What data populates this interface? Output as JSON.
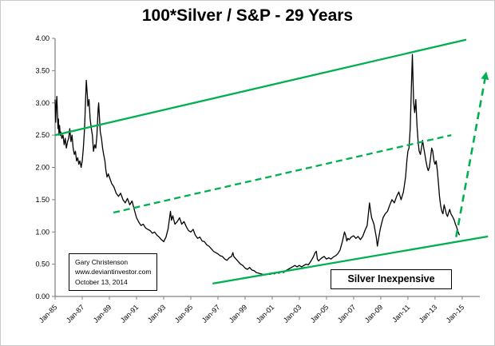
{
  "title": "100*Silver / S&P - 29 Years",
  "colors": {
    "series": "#000000",
    "trend_green": "#00B050",
    "axis": "#808080",
    "text": "#000000"
  },
  "chart_data": {
    "type": "line",
    "title": "100*Silver / S&P - 29 Years",
    "xlabel": "",
    "ylabel": "",
    "xlim": [
      1985,
      2016.3
    ],
    "ylim": [
      0,
      4.0
    ],
    "grid": false,
    "legend": "none",
    "x_ticks": [
      [
        1985,
        "Jan-85"
      ],
      [
        1987,
        "Jan-87"
      ],
      [
        1989,
        "Jan-89"
      ],
      [
        1991,
        "Jan-91"
      ],
      [
        1993,
        "Jan-93"
      ],
      [
        1995,
        "Jan-95"
      ],
      [
        1997,
        "Jan-97"
      ],
      [
        1999,
        "Jan-99"
      ],
      [
        2001,
        "Jan-01"
      ],
      [
        2003,
        "Jan-03"
      ],
      [
        2005,
        "Jan-05"
      ],
      [
        2007,
        "Jan-07"
      ],
      [
        2009,
        "Jan-09"
      ],
      [
        2011,
        "Jan-11"
      ],
      [
        2013,
        "Jan-13"
      ],
      [
        2015,
        "Jan-15"
      ]
    ],
    "y_ticks": [
      [
        0,
        "0.00"
      ],
      [
        0.5,
        "0.50"
      ],
      [
        1,
        "1.00"
      ],
      [
        1.5,
        "1.50"
      ],
      [
        2,
        "2.00"
      ],
      [
        2.5,
        "2.50"
      ],
      [
        3,
        "3.00"
      ],
      [
        3.5,
        "3.50"
      ],
      [
        4,
        "4.00"
      ]
    ],
    "series": [
      {
        "name": "100*Silver / S&P ratio",
        "color": "#000000",
        "points": [
          [
            1985.0,
            3.05
          ],
          [
            1985.04,
            2.7
          ],
          [
            1985.08,
            2.95
          ],
          [
            1985.13,
            3.1
          ],
          [
            1985.17,
            2.85
          ],
          [
            1985.21,
            2.6
          ],
          [
            1985.25,
            2.75
          ],
          [
            1985.29,
            2.5
          ],
          [
            1985.33,
            2.65
          ],
          [
            1985.38,
            2.5
          ],
          [
            1985.42,
            2.55
          ],
          [
            1985.5,
            2.45
          ],
          [
            1985.58,
            2.5
          ],
          [
            1985.67,
            2.35
          ],
          [
            1985.75,
            2.45
          ],
          [
            1985.83,
            2.3
          ],
          [
            1985.92,
            2.4
          ],
          [
            1986.0,
            2.45
          ],
          [
            1986.08,
            2.6
          ],
          [
            1986.17,
            2.4
          ],
          [
            1986.25,
            2.5
          ],
          [
            1986.33,
            2.3
          ],
          [
            1986.42,
            2.2
          ],
          [
            1986.5,
            2.25
          ],
          [
            1986.58,
            2.1
          ],
          [
            1986.67,
            2.15
          ],
          [
            1986.75,
            2.05
          ],
          [
            1986.83,
            2.1
          ],
          [
            1986.92,
            2.0
          ],
          [
            1987.0,
            2.1
          ],
          [
            1987.08,
            2.3
          ],
          [
            1987.17,
            2.6
          ],
          [
            1987.25,
            3.05
          ],
          [
            1987.3,
            3.35
          ],
          [
            1987.38,
            3.1
          ],
          [
            1987.42,
            2.95
          ],
          [
            1987.5,
            3.05
          ],
          [
            1987.58,
            2.75
          ],
          [
            1987.67,
            2.6
          ],
          [
            1987.75,
            2.5
          ],
          [
            1987.83,
            2.25
          ],
          [
            1987.92,
            2.35
          ],
          [
            1988.0,
            2.3
          ],
          [
            1988.08,
            2.5
          ],
          [
            1988.17,
            2.9
          ],
          [
            1988.21,
            3.0
          ],
          [
            1988.29,
            2.7
          ],
          [
            1988.33,
            2.55
          ],
          [
            1988.42,
            2.45
          ],
          [
            1988.5,
            2.3
          ],
          [
            1988.58,
            2.2
          ],
          [
            1988.67,
            2.1
          ],
          [
            1988.75,
            1.95
          ],
          [
            1988.83,
            1.85
          ],
          [
            1988.92,
            1.9
          ],
          [
            1989.0,
            1.85
          ],
          [
            1989.17,
            1.75
          ],
          [
            1989.33,
            1.7
          ],
          [
            1989.5,
            1.6
          ],
          [
            1989.67,
            1.55
          ],
          [
            1989.83,
            1.6
          ],
          [
            1990.0,
            1.5
          ],
          [
            1990.17,
            1.45
          ],
          [
            1990.33,
            1.52
          ],
          [
            1990.5,
            1.42
          ],
          [
            1990.67,
            1.48
          ],
          [
            1990.83,
            1.35
          ],
          [
            1991.0,
            1.22
          ],
          [
            1991.17,
            1.15
          ],
          [
            1991.33,
            1.1
          ],
          [
            1991.5,
            1.12
          ],
          [
            1991.67,
            1.06
          ],
          [
            1991.83,
            1.04
          ],
          [
            1992.0,
            1.02
          ],
          [
            1992.17,
            0.98
          ],
          [
            1992.33,
            1.0
          ],
          [
            1992.5,
            0.95
          ],
          [
            1992.67,
            0.92
          ],
          [
            1992.83,
            0.88
          ],
          [
            1993.0,
            0.85
          ],
          [
            1993.17,
            0.92
          ],
          [
            1993.33,
            1.05
          ],
          [
            1993.5,
            1.32
          ],
          [
            1993.58,
            1.18
          ],
          [
            1993.67,
            1.25
          ],
          [
            1993.83,
            1.12
          ],
          [
            1994.0,
            1.16
          ],
          [
            1994.17,
            1.22
          ],
          [
            1994.33,
            1.12
          ],
          [
            1994.5,
            1.16
          ],
          [
            1994.67,
            1.08
          ],
          [
            1994.83,
            1.02
          ],
          [
            1995.0,
            1.0
          ],
          [
            1995.17,
            1.04
          ],
          [
            1995.33,
            0.95
          ],
          [
            1995.5,
            0.9
          ],
          [
            1995.67,
            0.92
          ],
          [
            1995.83,
            0.86
          ],
          [
            1996.0,
            0.85
          ],
          [
            1996.17,
            0.8
          ],
          [
            1996.33,
            0.78
          ],
          [
            1996.5,
            0.74
          ],
          [
            1996.67,
            0.7
          ],
          [
            1996.83,
            0.68
          ],
          [
            1997.0,
            0.66
          ],
          [
            1997.17,
            0.63
          ],
          [
            1997.33,
            0.62
          ],
          [
            1997.5,
            0.58
          ],
          [
            1997.67,
            0.56
          ],
          [
            1997.83,
            0.6
          ],
          [
            1998.0,
            0.62
          ],
          [
            1998.1,
            0.68
          ],
          [
            1998.17,
            0.62
          ],
          [
            1998.33,
            0.58
          ],
          [
            1998.5,
            0.54
          ],
          [
            1998.67,
            0.5
          ],
          [
            1998.83,
            0.48
          ],
          [
            1999.0,
            0.44
          ],
          [
            1999.17,
            0.42
          ],
          [
            1999.33,
            0.45
          ],
          [
            1999.5,
            0.41
          ],
          [
            1999.67,
            0.4
          ],
          [
            1999.83,
            0.37
          ],
          [
            2000.0,
            0.36
          ],
          [
            2000.17,
            0.35
          ],
          [
            2000.33,
            0.34
          ],
          [
            2000.5,
            0.34
          ],
          [
            2000.67,
            0.35
          ],
          [
            2000.83,
            0.34
          ],
          [
            2001.0,
            0.36
          ],
          [
            2001.17,
            0.35
          ],
          [
            2001.33,
            0.37
          ],
          [
            2001.5,
            0.36
          ],
          [
            2001.67,
            0.39
          ],
          [
            2001.83,
            0.37
          ],
          [
            2002.0,
            0.4
          ],
          [
            2002.17,
            0.42
          ],
          [
            2002.33,
            0.44
          ],
          [
            2002.5,
            0.46
          ],
          [
            2002.67,
            0.48
          ],
          [
            2002.83,
            0.46
          ],
          [
            2003.0,
            0.48
          ],
          [
            2003.17,
            0.46
          ],
          [
            2003.33,
            0.48
          ],
          [
            2003.5,
            0.5
          ],
          [
            2003.67,
            0.49
          ],
          [
            2003.83,
            0.54
          ],
          [
            2004.0,
            0.6
          ],
          [
            2004.17,
            0.68
          ],
          [
            2004.25,
            0.7
          ],
          [
            2004.33,
            0.58
          ],
          [
            2004.42,
            0.55
          ],
          [
            2004.5,
            0.57
          ],
          [
            2004.67,
            0.6
          ],
          [
            2004.83,
            0.62
          ],
          [
            2005.0,
            0.58
          ],
          [
            2005.17,
            0.6
          ],
          [
            2005.33,
            0.58
          ],
          [
            2005.5,
            0.61
          ],
          [
            2005.67,
            0.63
          ],
          [
            2005.83,
            0.66
          ],
          [
            2006.0,
            0.72
          ],
          [
            2006.17,
            0.85
          ],
          [
            2006.33,
            1.0
          ],
          [
            2006.42,
            0.94
          ],
          [
            2006.5,
            0.86
          ],
          [
            2006.58,
            0.9
          ],
          [
            2006.67,
            0.88
          ],
          [
            2006.83,
            0.92
          ],
          [
            2007.0,
            0.94
          ],
          [
            2007.17,
            0.9
          ],
          [
            2007.33,
            0.93
          ],
          [
            2007.5,
            0.88
          ],
          [
            2007.67,
            0.93
          ],
          [
            2007.83,
            1.02
          ],
          [
            2008.0,
            1.1
          ],
          [
            2008.17,
            1.45
          ],
          [
            2008.25,
            1.32
          ],
          [
            2008.33,
            1.22
          ],
          [
            2008.5,
            1.12
          ],
          [
            2008.58,
            1.02
          ],
          [
            2008.67,
            0.92
          ],
          [
            2008.75,
            0.78
          ],
          [
            2008.83,
            0.88
          ],
          [
            2008.92,
            1.0
          ],
          [
            2009.0,
            1.08
          ],
          [
            2009.17,
            1.22
          ],
          [
            2009.33,
            1.28
          ],
          [
            2009.5,
            1.32
          ],
          [
            2009.67,
            1.42
          ],
          [
            2009.83,
            1.5
          ],
          [
            2010.0,
            1.45
          ],
          [
            2010.17,
            1.55
          ],
          [
            2010.33,
            1.62
          ],
          [
            2010.5,
            1.5
          ],
          [
            2010.67,
            1.62
          ],
          [
            2010.83,
            1.85
          ],
          [
            2010.92,
            2.1
          ],
          [
            2011.0,
            2.25
          ],
          [
            2011.08,
            2.3
          ],
          [
            2011.17,
            2.6
          ],
          [
            2011.25,
            3.2
          ],
          [
            2011.33,
            3.75
          ],
          [
            2011.42,
            3.0
          ],
          [
            2011.5,
            2.85
          ],
          [
            2011.58,
            3.05
          ],
          [
            2011.67,
            2.65
          ],
          [
            2011.75,
            2.4
          ],
          [
            2011.83,
            2.25
          ],
          [
            2011.92,
            2.2
          ],
          [
            2012.0,
            2.3
          ],
          [
            2012.08,
            2.42
          ],
          [
            2012.17,
            2.3
          ],
          [
            2012.25,
            2.2
          ],
          [
            2012.33,
            2.1
          ],
          [
            2012.42,
            2.0
          ],
          [
            2012.5,
            1.95
          ],
          [
            2012.58,
            2.0
          ],
          [
            2012.67,
            2.15
          ],
          [
            2012.75,
            2.3
          ],
          [
            2012.83,
            2.25
          ],
          [
            2012.92,
            2.1
          ],
          [
            2013.0,
            2.05
          ],
          [
            2013.08,
            2.1
          ],
          [
            2013.17,
            1.95
          ],
          [
            2013.25,
            1.75
          ],
          [
            2013.33,
            1.55
          ],
          [
            2013.42,
            1.4
          ],
          [
            2013.5,
            1.32
          ],
          [
            2013.58,
            1.28
          ],
          [
            2013.67,
            1.42
          ],
          [
            2013.75,
            1.35
          ],
          [
            2013.83,
            1.28
          ],
          [
            2013.92,
            1.24
          ],
          [
            2014.0,
            1.3
          ],
          [
            2014.08,
            1.35
          ],
          [
            2014.17,
            1.28
          ],
          [
            2014.25,
            1.25
          ],
          [
            2014.33,
            1.22
          ],
          [
            2014.42,
            1.18
          ],
          [
            2014.5,
            1.12
          ],
          [
            2014.58,
            1.08
          ],
          [
            2014.67,
            1.02
          ],
          [
            2014.75,
            0.97
          ],
          [
            2014.8,
            0.95
          ]
        ]
      }
    ],
    "trendlines": [
      {
        "name": "upper-resistance",
        "style": "solid",
        "color": "#00B050",
        "points": [
          [
            1985.0,
            2.5
          ],
          [
            2015.3,
            3.98
          ]
        ]
      },
      {
        "name": "middle-channel",
        "style": "dashed",
        "color": "#00B050",
        "points": [
          [
            1989.3,
            1.3
          ],
          [
            2014.2,
            2.5
          ]
        ]
      },
      {
        "name": "lower-support",
        "style": "solid",
        "color": "#00B050",
        "points": [
          [
            1996.6,
            0.2
          ],
          [
            2016.9,
            0.93
          ]
        ]
      }
    ],
    "arrow": {
      "name": "projection-arrow",
      "style": "dashed",
      "color": "#00B050",
      "from": [
        2014.55,
        0.92
      ],
      "to": [
        2016.75,
        3.45
      ]
    },
    "annotations": {
      "credit_lines": [
        "Gary Christenson",
        "www.deviantinvestor.com",
        "October 13, 2014"
      ],
      "inexpensive_label": "Silver Inexpensive"
    }
  }
}
